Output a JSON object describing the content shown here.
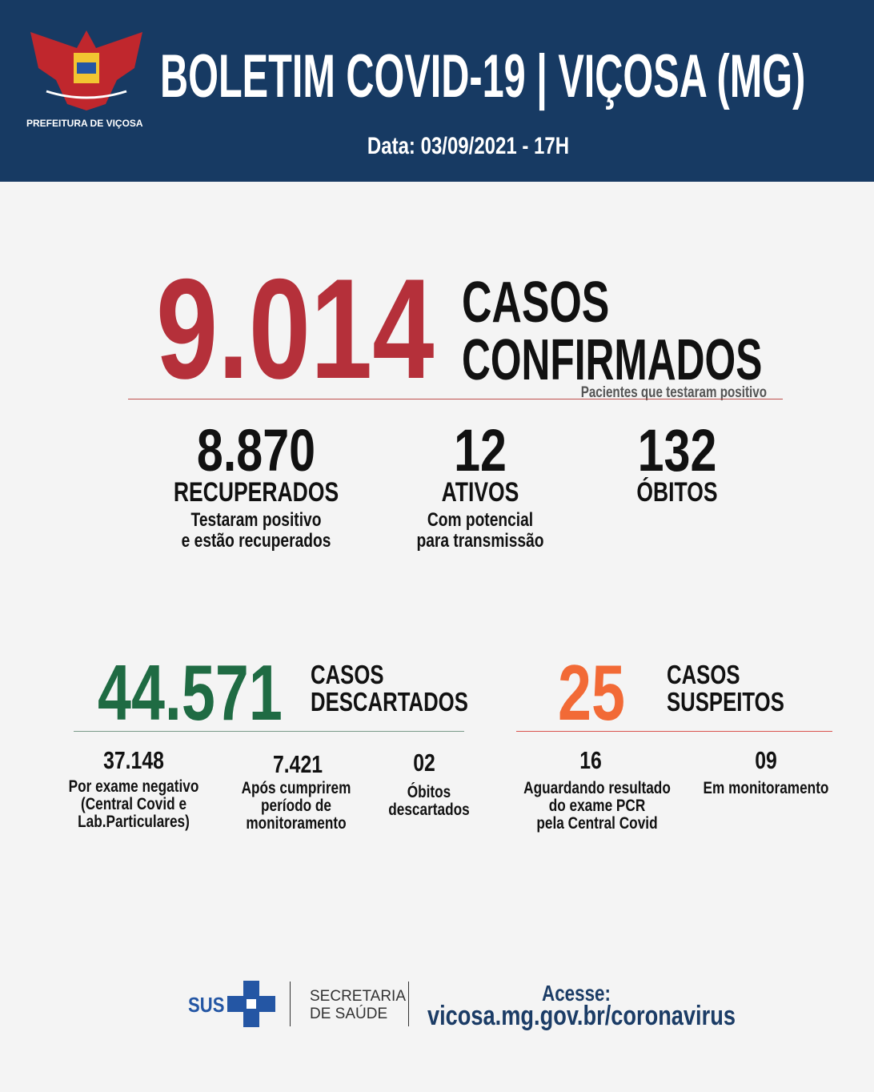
{
  "header": {
    "logo_text": "PREFEITURA DE VIÇOSA",
    "title": "BOLETIM COVID-19 | VIÇOSA (MG)",
    "date": "Data: 03/09/2021 - 17H"
  },
  "confirmed": {
    "value": "9.014",
    "label": [
      "CASOS",
      "CONFIRMADOS"
    ],
    "note": "Pacientes que testaram positivo"
  },
  "stats": [
    {
      "value": "8.870",
      "label": "RECUPERADOS",
      "desc": [
        "Testaram positivo",
        "e estão recuperados"
      ]
    },
    {
      "value": "12",
      "label": "ATIVOS",
      "desc": [
        "Com potencial",
        "para transmissão"
      ]
    },
    {
      "value": "132",
      "label": "ÓBITOS"
    }
  ],
  "discarded": {
    "value": "44.571",
    "label": [
      "CASOS",
      "DESCARTADOS"
    ],
    "items": [
      {
        "value": "37.148",
        "desc": [
          "Por exame negativo",
          "(Central Covid e",
          "Lab.Particulares)"
        ]
      },
      {
        "value": "7.421",
        "desc": [
          "Após cumprirem",
          "período de",
          "monitoramento"
        ]
      },
      {
        "value": "02",
        "desc": [
          "Óbitos",
          "descartados"
        ]
      }
    ]
  },
  "suspected": {
    "value": "25",
    "label": [
      "CASOS",
      "SUSPEITOS"
    ],
    "items": [
      {
        "value": "16",
        "desc": [
          "Aguardando resultado",
          "do exame PCR",
          "pela Central Covid"
        ]
      },
      {
        "value": "09",
        "desc": [
          "Em monitoramento"
        ]
      }
    ]
  },
  "footer": {
    "sus": "SUS",
    "secretaria": [
      "SECRETARIA",
      "DE SAÚDE"
    ],
    "access": "Acesse:",
    "url": "vicosa.mg.gov.br/coronavirus"
  }
}
